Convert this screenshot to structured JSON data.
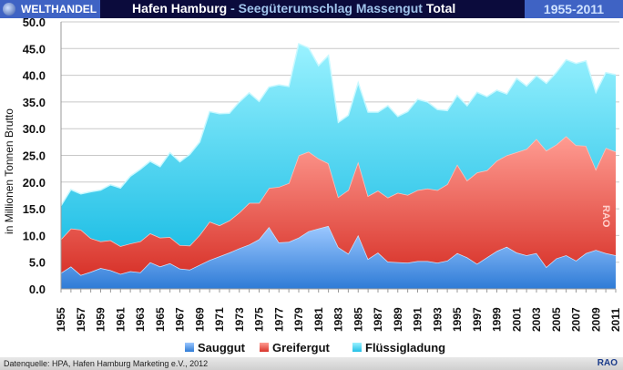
{
  "header": {
    "brand": "WELTHANDEL",
    "title_main": "Hafen Hamburg",
    "title_sub": " - Seegüterumschlag Massengut ",
    "title_total": " Total",
    "years": "1955-2011"
  },
  "footer": {
    "source": "Datenquelle: HPA, Hafen Hamburg Marketing e.V., 2012",
    "brand": "RAO"
  },
  "watermark": "RAO",
  "colors": {
    "sauggut": "#4a8fe0",
    "greifergut": "#e8483c",
    "fluessig": "#38c8ea"
  },
  "chart_data": {
    "type": "area",
    "stacked": true,
    "title": "Hafen Hamburg - Seegüterumschlag Massengut Total",
    "ylabel": "in Millionen Tonnen Brutto",
    "xlabel": "",
    "ylim": [
      0,
      50
    ],
    "yticks": [
      "0.0",
      "5.0",
      "10.0",
      "15.0",
      "20.0",
      "25.0",
      "30.0",
      "35.0",
      "40.0",
      "45.0",
      "50.0"
    ],
    "x": [
      1955,
      1956,
      1957,
      1958,
      1959,
      1960,
      1961,
      1962,
      1963,
      1964,
      1965,
      1966,
      1967,
      1968,
      1969,
      1970,
      1971,
      1972,
      1973,
      1974,
      1975,
      1976,
      1977,
      1978,
      1979,
      1980,
      1981,
      1982,
      1983,
      1984,
      1985,
      1986,
      1987,
      1988,
      1989,
      1990,
      1991,
      1992,
      1993,
      1994,
      1995,
      1996,
      1997,
      1998,
      1999,
      2000,
      2001,
      2002,
      2003,
      2004,
      2005,
      2006,
      2007,
      2008,
      2009,
      2010,
      2011
    ],
    "xticklabels": [
      "1955",
      "1957",
      "1959",
      "1961",
      "1963",
      "1965",
      "1967",
      "1969",
      "1971",
      "1973",
      "1975",
      "1977",
      "1979",
      "1981",
      "1983",
      "1985",
      "1987",
      "1989",
      "1991",
      "1993",
      "1995",
      "1997",
      "1999",
      "2001",
      "2003",
      "2005",
      "2007",
      "2009",
      "2011"
    ],
    "legend_position": "bottom",
    "grid": true,
    "series": [
      {
        "name": "Sauggut",
        "values": [
          3.0,
          4.2,
          2.6,
          3.2,
          3.9,
          3.5,
          2.8,
          3.3,
          3.1,
          5.0,
          4.2,
          4.8,
          3.8,
          3.6,
          4.5,
          5.4,
          6.1,
          6.8,
          7.6,
          8.3,
          9.3,
          11.6,
          8.7,
          8.8,
          9.6,
          10.8,
          11.3,
          11.8,
          7.8,
          6.6,
          10.1,
          5.6,
          6.8,
          5.1,
          5.0,
          4.9,
          5.2,
          5.2,
          4.9,
          5.3,
          6.7,
          5.9,
          4.7,
          5.9,
          7.1,
          7.9,
          6.8,
          6.3,
          6.7,
          4.1,
          5.7,
          6.3,
          5.3,
          6.7,
          7.3,
          6.7,
          6.3
        ]
      },
      {
        "name": "Greifergut",
        "values": [
          6.3,
          7.1,
          8.5,
          6.3,
          5.0,
          5.6,
          5.2,
          5.2,
          5.8,
          5.4,
          5.4,
          4.9,
          4.4,
          4.5,
          5.6,
          7.2,
          5.8,
          6.0,
          6.7,
          7.8,
          6.8,
          7.3,
          10.4,
          11.0,
          15.4,
          14.9,
          13.1,
          11.7,
          9.4,
          11.9,
          13.7,
          11.8,
          11.6,
          12.0,
          13.0,
          12.7,
          13.3,
          13.6,
          13.6,
          14.3,
          16.6,
          14.4,
          17.1,
          16.3,
          16.9,
          17.1,
          18.8,
          19.9,
          21.4,
          21.8,
          21.3,
          22.3,
          21.6,
          20.1,
          15.1,
          19.7,
          19.4
        ]
      },
      {
        "name": "Flüssigladung",
        "values": [
          6.3,
          7.3,
          6.7,
          8.7,
          9.6,
          10.4,
          10.9,
          12.6,
          13.5,
          13.5,
          13.3,
          15.8,
          15.6,
          17.1,
          17.4,
          20.6,
          20.9,
          20.1,
          20.7,
          20.6,
          19.0,
          18.9,
          19.1,
          18.1,
          20.9,
          19.4,
          17.4,
          20.2,
          14.0,
          14.0,
          14.8,
          15.7,
          14.7,
          17.2,
          14.3,
          15.6,
          17.0,
          16.2,
          15.1,
          13.8,
          12.9,
          14.0,
          15.0,
          13.8,
          13.2,
          11.5,
          13.8,
          11.8,
          11.8,
          12.6,
          13.5,
          14.3,
          15.3,
          15.9,
          14.4,
          14.1,
          14.4
        ]
      }
    ]
  }
}
